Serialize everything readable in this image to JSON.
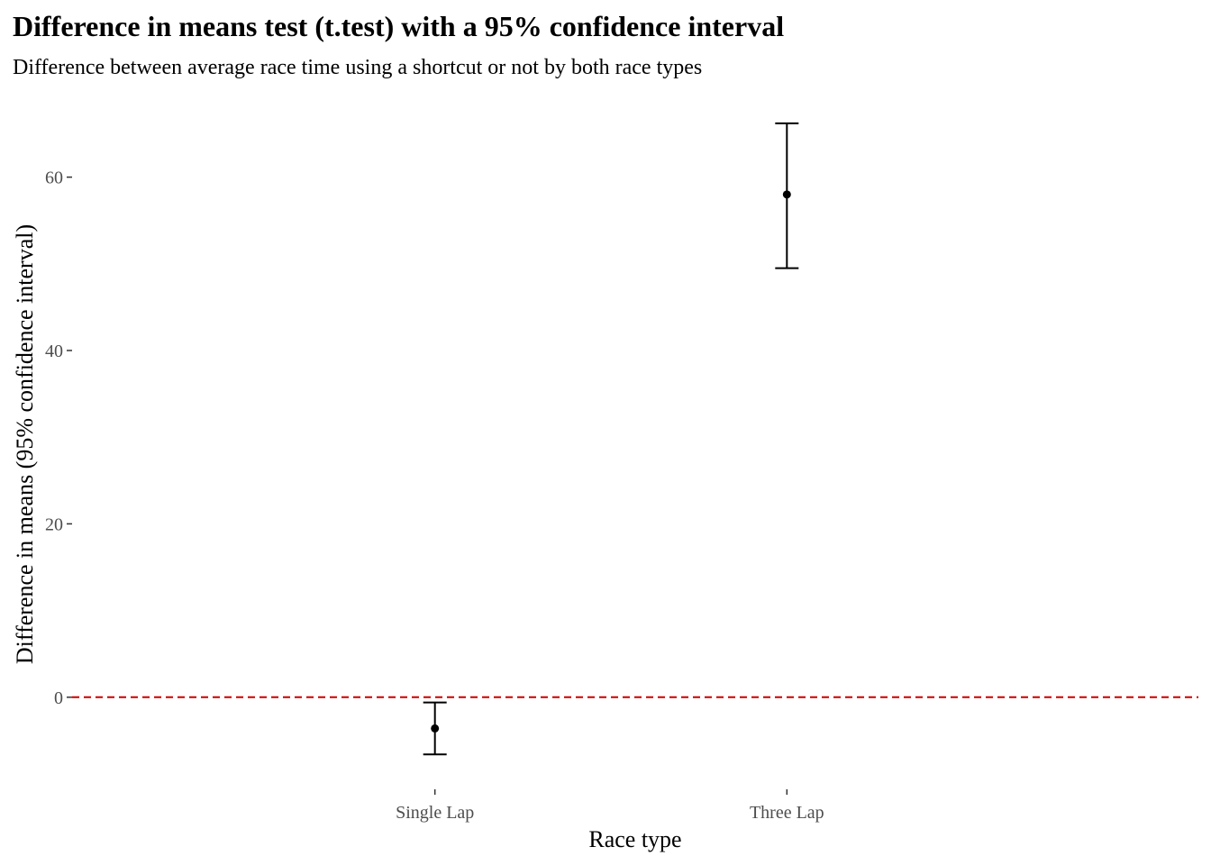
{
  "chart_data": {
    "type": "errorbar",
    "title": "Difference in means test (t.test) with a 95% confidence interval",
    "subtitle": "Difference between average race time using a shortcut or not by both race types",
    "xlabel": "Race type",
    "ylabel": "Difference in means (95% confidence interval)",
    "categories": [
      "Single Lap",
      "Three Lap"
    ],
    "estimate": [
      -3.6,
      58.0
    ],
    "ci_low": [
      -6.6,
      49.5
    ],
    "ci_high": [
      -0.6,
      66.2
    ],
    "ylim": [
      -10.0,
      69.0
    ],
    "yticks": [
      0,
      20,
      40,
      60
    ],
    "reference_line": {
      "y": 0,
      "style": "dashed",
      "color": "#cc0000"
    },
    "grid": false,
    "point_color": "#000000"
  }
}
